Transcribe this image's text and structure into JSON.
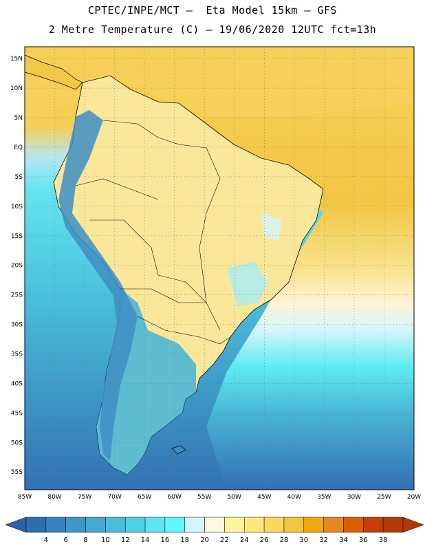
{
  "header": {
    "line1": "CPTEC/INPE/MCT –  Eta Model 15km – GFS",
    "line2": "2 Metre Temperature (C) – 19/06/2020 12UTC fct=13h"
  },
  "map": {
    "region": "South America",
    "lon_range": [
      -85,
      -20
    ],
    "lat_range": [
      -58,
      17
    ],
    "grid": "dotted",
    "lat_labels": [
      "15N",
      "10N",
      "5N",
      "EQ",
      "5S",
      "10S",
      "15S",
      "20S",
      "25S",
      "30S",
      "35S",
      "40S",
      "45S",
      "50S",
      "55S"
    ],
    "lon_labels": [
      "85W",
      "80W",
      "75W",
      "70W",
      "65W",
      "60W",
      "55W",
      "50W",
      "45W",
      "40W",
      "35W",
      "30W",
      "25W",
      "20W"
    ]
  },
  "colorbar": {
    "labels": [
      "4",
      "6",
      "8",
      "10",
      "12",
      "14",
      "16",
      "18",
      "20",
      "22",
      "24",
      "26",
      "28",
      "30",
      "32",
      "34",
      "36",
      "38"
    ],
    "colors": [
      "#2e6eb0",
      "#3783be",
      "#3f97c8",
      "#46a9d0",
      "#4dbcd9",
      "#56d0e5",
      "#5fe3ee",
      "#64f5f7",
      "#d4f5fb",
      "#fff8e2",
      "#fff59e",
      "#fde880",
      "#f8d863",
      "#f2c43f",
      "#f0ab12",
      "#e68724",
      "#d85f08",
      "#c63f06",
      "#b33a08"
    ],
    "under_color": "#2b63a8",
    "over_color": "#b23808"
  }
}
